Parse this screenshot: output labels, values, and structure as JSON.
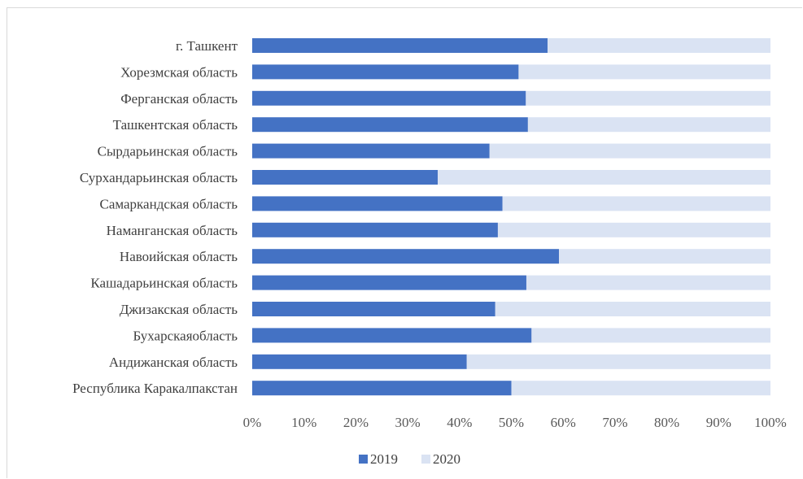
{
  "chart_data": {
    "type": "bar",
    "orientation": "horizontal",
    "stacking": "percent",
    "categories": [
      "г. Ташкент",
      "Хорезмская область",
      "Ферганская область",
      "Ташкентская область",
      "Сырдарьинская область",
      "Сурхандарьинская область",
      "Самаркандская область",
      "Наманганская область",
      "Навоийская область",
      "Кашадарьинская область",
      "Джизакская область",
      "Бухарскаяобласть",
      "Андижанская область",
      "Республика Каракалпакстан"
    ],
    "series": [
      {
        "name": "2019",
        "color": "#4472c4",
        "values": [
          57,
          51.4,
          52.8,
          53.2,
          45.8,
          35.8,
          48.3,
          47.4,
          59.2,
          52.9,
          46.9,
          53.9,
          41.4,
          50
        ]
      },
      {
        "name": "2020",
        "color": "#dae3f3",
        "values": [
          43,
          48.6,
          47.2,
          46.8,
          54.2,
          64.2,
          51.7,
          52.6,
          40.8,
          47.1,
          53.1,
          46.1,
          58.6,
          50
        ]
      }
    ],
    "xticks": [
      "0%",
      "10%",
      "20%",
      "30%",
      "40%",
      "50%",
      "60%",
      "70%",
      "80%",
      "90%",
      "100%"
    ],
    "xlim": [
      0,
      100
    ],
    "title": "",
    "xlabel": "",
    "ylabel": "",
    "grid": false,
    "legend_position": "bottom"
  }
}
